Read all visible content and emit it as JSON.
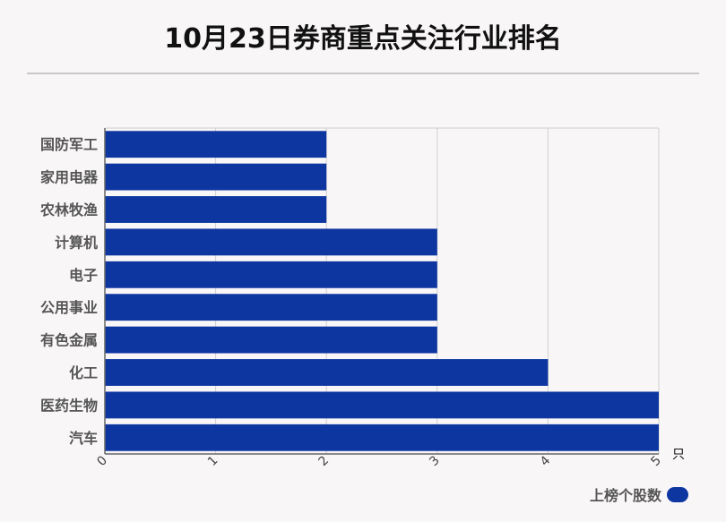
{
  "chart_data": {
    "type": "bar",
    "orientation": "horizontal",
    "title": "10月23日券商重点关注行业排名",
    "categories": [
      "国防军工",
      "家用电器",
      "农林牧渔",
      "计算机",
      "电子",
      "公用事业",
      "有色金属",
      "化工",
      "医药生物",
      "汽车"
    ],
    "series": [
      {
        "name": "上榜个股数",
        "values": [
          2,
          2,
          2,
          3,
          3,
          3,
          3,
          4,
          5,
          5
        ]
      }
    ],
    "x_ticks": [
      "0",
      "1",
      "2",
      "3",
      "4",
      "5"
    ],
    "xlim": [
      0,
      5
    ],
    "x_unit": "只",
    "grid": true,
    "legend_position": "bottom-right",
    "bar_color": "#0e36a1"
  }
}
